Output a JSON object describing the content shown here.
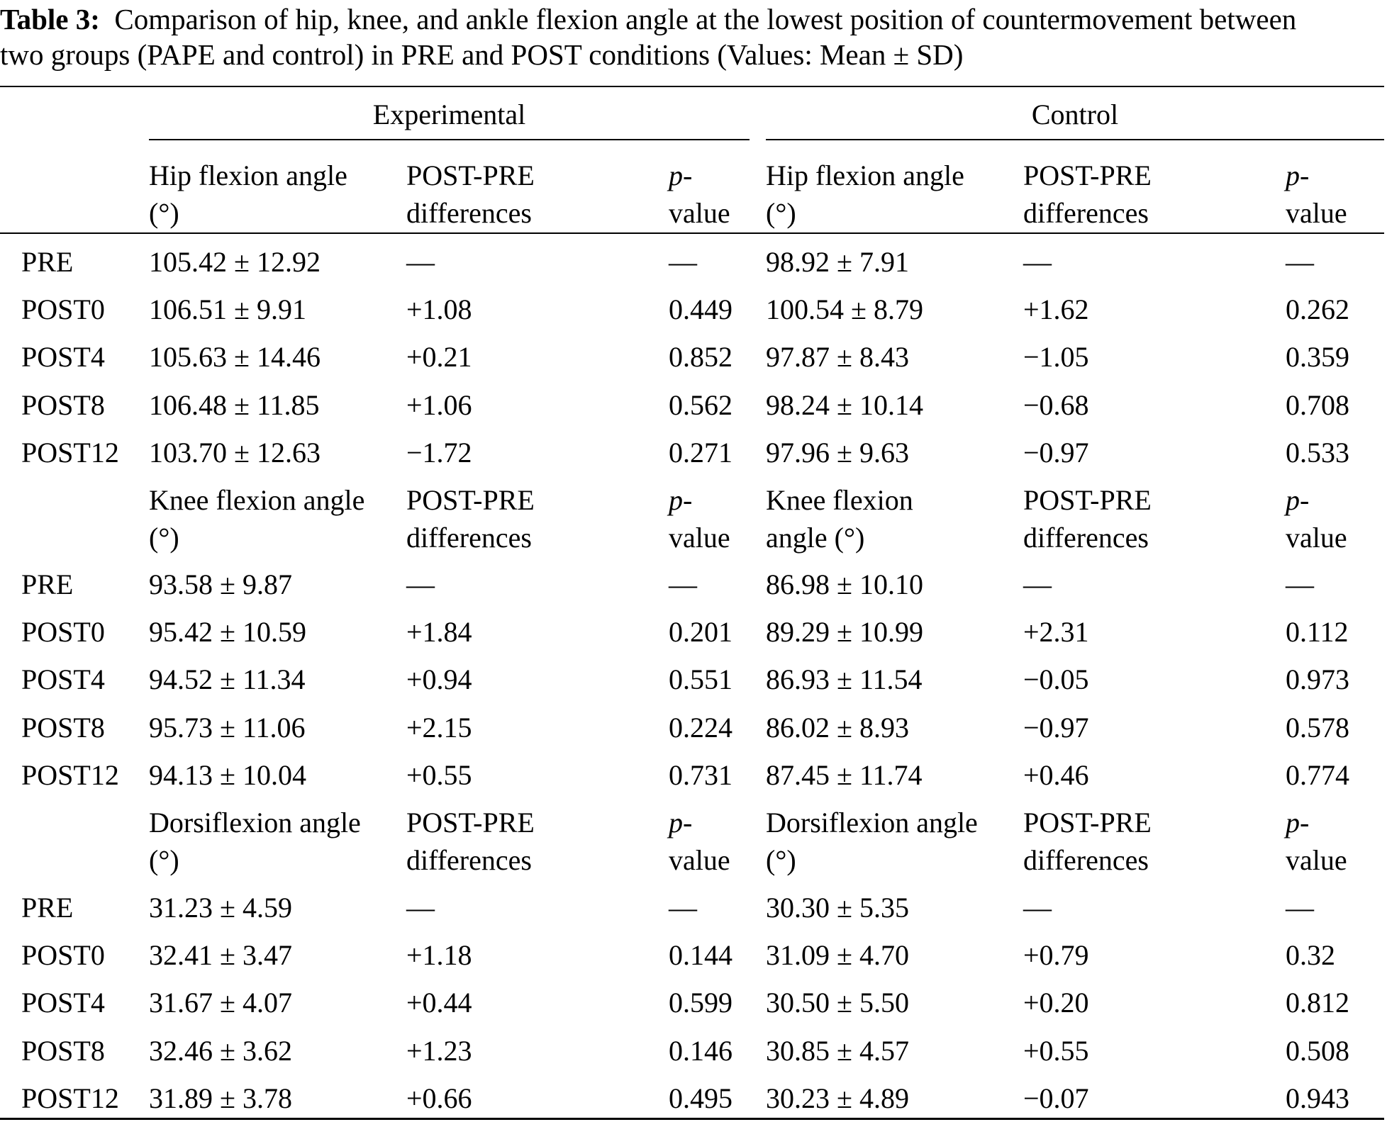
{
  "caption": {
    "label": "Table 3:",
    "text_line1": "Comparison of hip, knee, and ankle flexion angle at the lowest position of countermovement between",
    "text_line2": "two groups (PAPE and control) in PRE and POST conditions (Values: Mean ± SD)"
  },
  "groups": [
    "Experimental",
    "Control"
  ],
  "header_labels": {
    "diff_line1": "POST-PRE",
    "diff_line2": "differences",
    "p_line1": "p-",
    "p_line2": "value"
  },
  "sections": [
    {
      "exp_measure": [
        "Hip flexion angle",
        "(°)"
      ],
      "ctl_measure": [
        "Hip flexion angle",
        "(°)"
      ],
      "rows": [
        [
          "PRE",
          "105.42 ± 12.92",
          "—",
          "—",
          "98.92 ± 7.91",
          "—",
          "—"
        ],
        [
          "POST0",
          "106.51 ± 9.91",
          "+1.08",
          "0.449",
          "100.54 ± 8.79",
          "+1.62",
          "0.262"
        ],
        [
          "POST4",
          "105.63 ± 14.46",
          "+0.21",
          "0.852",
          "97.87 ± 8.43",
          "−1.05",
          "0.359"
        ],
        [
          "POST8",
          "106.48 ± 11.85",
          "+1.06",
          "0.562",
          "98.24 ± 10.14",
          "−0.68",
          "0.708"
        ],
        [
          "POST12",
          "103.70 ± 12.63",
          "−1.72",
          "0.271",
          "97.96 ± 9.63",
          "−0.97",
          "0.533"
        ]
      ]
    },
    {
      "exp_measure": [
        "Knee flexion angle",
        "(°)"
      ],
      "ctl_measure": [
        "Knee flexion",
        "angle (°)"
      ],
      "rows": [
        [
          "PRE",
          "93.58 ± 9.87",
          "—",
          "—",
          "86.98 ± 10.10",
          "—",
          "—"
        ],
        [
          "POST0",
          "95.42 ± 10.59",
          "+1.84",
          "0.201",
          "89.29 ± 10.99",
          "+2.31",
          "0.112"
        ],
        [
          "POST4",
          "94.52 ± 11.34",
          "+0.94",
          "0.551",
          "86.93 ± 11.54",
          "−0.05",
          "0.973"
        ],
        [
          "POST8",
          "95.73 ± 11.06",
          "+2.15",
          "0.224",
          "86.02 ± 8.93",
          "−0.97",
          "0.578"
        ],
        [
          "POST12",
          "94.13 ± 10.04",
          "+0.55",
          "0.731",
          "87.45 ± 11.74",
          "+0.46",
          "0.774"
        ]
      ]
    },
    {
      "exp_measure": [
        "Dorsiflexion angle",
        "(°)"
      ],
      "ctl_measure": [
        "Dorsiflexion angle",
        "(°)"
      ],
      "rows": [
        [
          "PRE",
          "31.23 ± 4.59",
          "—",
          "—",
          "30.30 ± 5.35",
          "—",
          "—"
        ],
        [
          "POST0",
          "32.41 ± 3.47",
          "+1.18",
          "0.144",
          "31.09 ± 4.70",
          "+0.79",
          "0.32"
        ],
        [
          "POST4",
          "31.67 ± 4.07",
          "+0.44",
          "0.599",
          "30.50 ± 5.50",
          "+0.20",
          "0.812"
        ],
        [
          "POST8",
          "32.46 ± 3.62",
          "+1.23",
          "0.146",
          "30.85 ± 4.57",
          "+0.55",
          "0.508"
        ],
        [
          "POST12",
          "31.89 ± 3.78",
          "+0.66",
          "0.495",
          "30.23 ± 4.89",
          "−0.07",
          "0.943"
        ]
      ]
    }
  ]
}
